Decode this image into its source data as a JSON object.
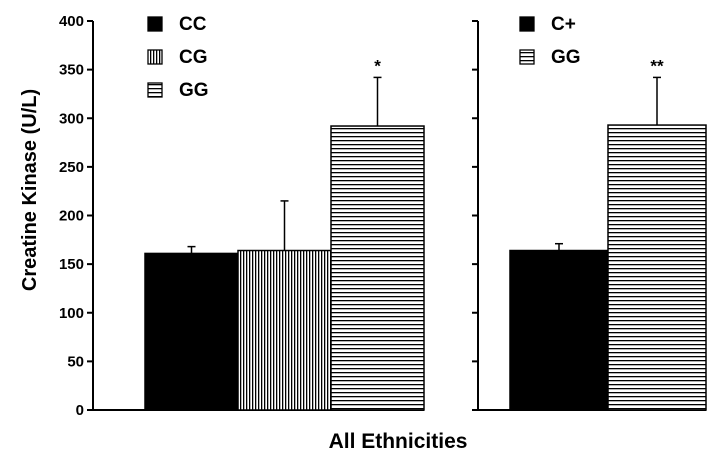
{
  "chart_data": [
    {
      "type": "bar",
      "panel": "left",
      "ylabel": "Creatine Kinase (U/L)",
      "ylim": [
        0,
        400
      ],
      "yticks": [
        0,
        50,
        100,
        150,
        200,
        250,
        300,
        350,
        400
      ],
      "categories": [
        "CC",
        "CG",
        "GG"
      ],
      "values": [
        161,
        164,
        292
      ],
      "errors": [
        7,
        51,
        50
      ],
      "patterns": [
        "solid",
        "vertical-lines",
        "horizontal-lines"
      ],
      "annotations": [
        "",
        "",
        "*"
      ],
      "legend": [
        "CC",
        "CG",
        "GG"
      ],
      "legend_position": "top-left"
    },
    {
      "type": "bar",
      "panel": "right",
      "ylim": [
        0,
        400
      ],
      "categories": [
        "C+",
        "GG"
      ],
      "values": [
        164,
        293
      ],
      "errors": [
        7,
        49
      ],
      "patterns": [
        "solid",
        "horizontal-lines"
      ],
      "annotations": [
        "",
        "**"
      ],
      "legend": [
        "C+",
        "GG"
      ],
      "legend_position": "top-left"
    }
  ],
  "xlabel": "All Ethnicities",
  "colors": {
    "ink": "#000000",
    "background": "#ffffff"
  }
}
